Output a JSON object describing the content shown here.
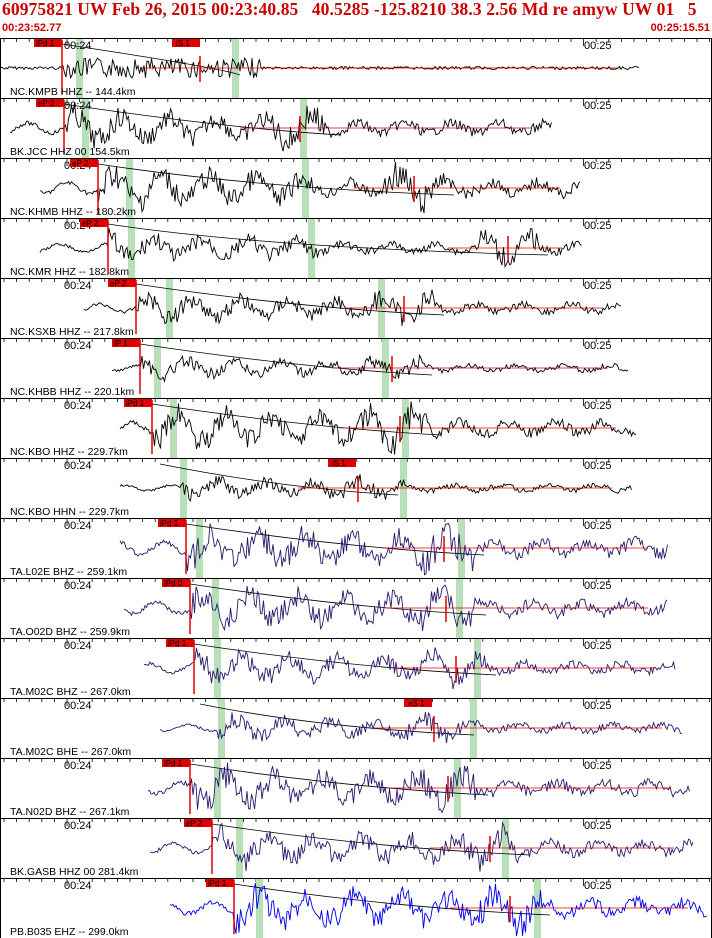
{
  "header": {
    "title": "60975821 UW Feb 26, 2015 00:23:40.85   40.5285 -125.8210 38.3 2.56 Md re amyw UW 01   5",
    "time_start": "00:23:52.77",
    "time_end": "00:25:15.51"
  },
  "colors": {
    "header_text": "#cc0000",
    "pick": "#e00000",
    "trace_uw": "#000000",
    "trace_ta": "#2a1a6e",
    "trace_pb": "#0000ee",
    "window": "#b8e0b8"
  },
  "traces": [
    {
      "label": "NC.KMPB HHZ -- 144.4km",
      "t24": "00:24",
      "t25": "00:25",
      "pick": "iPd 1",
      "pick2": "iS 1",
      "color": "trace_uw"
    },
    {
      "label": "BK.JCC HHZ 00 154.5km",
      "t24": "00:24",
      "t25": "00:25",
      "pick": "eP 2",
      "pick2": "",
      "color": "trace_uw"
    },
    {
      "label": "NC.KHMB HHZ -- 180.2km",
      "t24": "00:24",
      "t25": "00:25",
      "pick": "eP 2",
      "pick2": "",
      "color": "trace_uw"
    },
    {
      "label": "NC.KMR HHZ -- 182.8km",
      "t24": "00:24",
      "t25": "00:25",
      "pick": "eP 2",
      "pick2": "",
      "color": "trace_uw"
    },
    {
      "label": "NC.KSXB HHZ -- 217.8km",
      "t24": "00:24",
      "t25": "00:25",
      "pick": "eP 2",
      "pick2": "",
      "color": "trace_uw"
    },
    {
      "label": "NC.KHBB HHZ -- 220.1km",
      "t24": "00:24",
      "t25": "00:25",
      "pick": "iP 1",
      "pick2": "",
      "color": "trace_uw"
    },
    {
      "label": "NC.KBO HHZ -- 229.7km",
      "t24": "00:24",
      "t25": "00:25",
      "pick": "iPd 1",
      "pick2": "",
      "color": "trace_uw"
    },
    {
      "label": "NC.KBO HHN -- 229.7km",
      "t24": "00:24",
      "t25": "00:25",
      "pick": "",
      "pick2": "iS 1",
      "color": "trace_uw"
    },
    {
      "label": "TA.L02E BHZ -- 259.1km",
      "t24": "00:24",
      "t25": "00:25",
      "pick": "iPd 1",
      "pick2": "",
      "color": "trace_ta"
    },
    {
      "label": "TA.O02D BHZ -- 259.9km",
      "t24": "00:24",
      "t25": "00:25",
      "pick": "iPd 0",
      "pick2": "",
      "color": "trace_ta"
    },
    {
      "label": "TA.M02C BHZ -- 267.0km",
      "t24": "00:24",
      "t25": "00:25",
      "pick": "iPd 1",
      "pick2": "",
      "color": "trace_ta"
    },
    {
      "label": "TA.M02C BHE -- 267.0km",
      "t24": "00:24",
      "t25": "00:25",
      "pick": "",
      "pick2": "eS 1",
      "color": "trace_ta"
    },
    {
      "label": "TA.N02D BHZ -- 267.1km",
      "t24": "00:24",
      "t25": "00:25",
      "pick": "iPd 1",
      "pick2": "",
      "color": "trace_ta"
    },
    {
      "label": "BK.GASB HHZ 00 281.4km",
      "t24": "00:24",
      "t25": "00:25",
      "pick": "eP 2",
      "pick2": "",
      "color": "trace_ta"
    },
    {
      "label": "PB.B035 EHZ -- 299.0km",
      "t24": "00:24",
      "t25": "00:25",
      "pick": "iPd 1",
      "pick2": "",
      "color": "trace_pb"
    }
  ]
}
